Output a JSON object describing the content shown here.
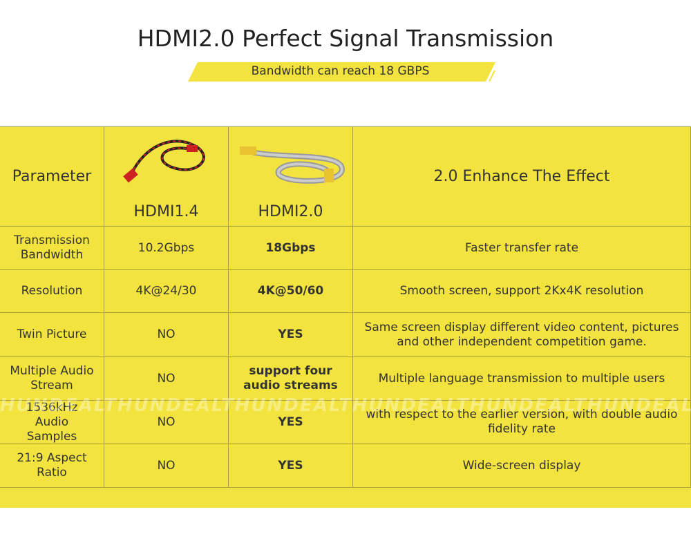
{
  "header": {
    "title": "HDMI2.0 Perfect Signal Transmission",
    "subtitle": "Bandwidth can reach 18 GBPS"
  },
  "watermark": "THUNDEAL",
  "table": {
    "head": [
      "Parameter",
      "HDMI1.4",
      "HDMI2.0",
      "2.0 Enhance The Effect"
    ],
    "rows": [
      [
        "Transmission Bandwidth",
        "10.2Gbps",
        "18Gbps",
        "Faster transfer rate"
      ],
      [
        "Resolution",
        "4K@24/30",
        "4K@50/60",
        "Smooth screen, support 2Kx4K resolution"
      ],
      [
        "Twin Picture",
        "NO",
        "YES",
        "Same screen display different video content, pictures and other independent competition game."
      ],
      [
        "Multiple Audio Stream",
        "NO",
        "support four audio streams",
        "Multiple language transmission to multiple users"
      ],
      [
        "1536kHz Audio Samples",
        "NO",
        "YES",
        "with respect to the earlier version, with double audio fidelity rate"
      ],
      [
        "21:9 Aspect Ratio",
        "NO",
        "YES",
        "Wide-screen display"
      ]
    ]
  }
}
